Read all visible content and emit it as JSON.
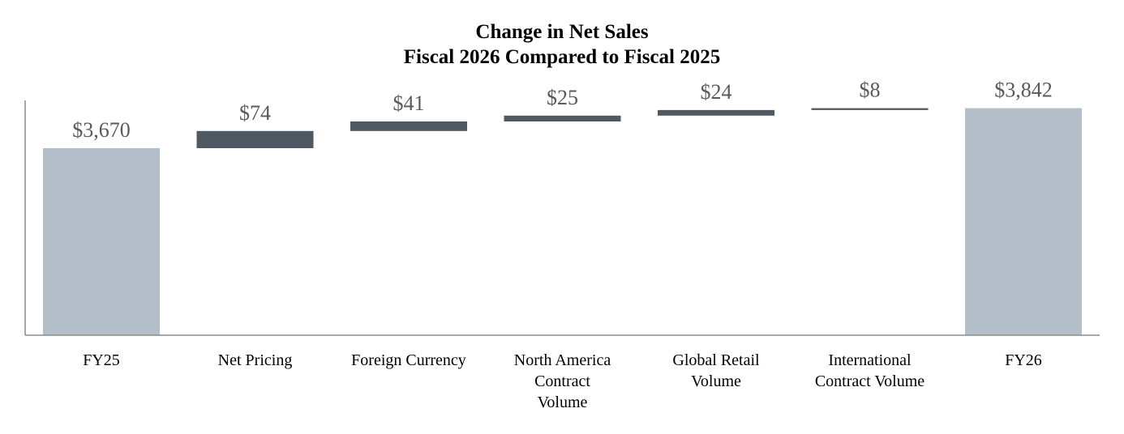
{
  "chart_data": {
    "type": "bar",
    "subtype": "waterfall",
    "title": "Change in Net Sales",
    "subtitle": "Fiscal 2026 Compared to Fiscal 2025",
    "categories": [
      "FY25",
      "Net Pricing",
      "Foreign Currency",
      "North America Contract Volume",
      "Global Retail Volume",
      "International Contract Volume",
      "FY26"
    ],
    "category_label_lines": [
      [
        "FY25"
      ],
      [
        "Net Pricing"
      ],
      [
        "Foreign Currency"
      ],
      [
        "North America",
        "Contract",
        "Volume"
      ],
      [
        "Global Retail",
        "Volume"
      ],
      [
        "International",
        "Contract Volume"
      ],
      [
        "FY26"
      ]
    ],
    "values": [
      3670,
      74,
      41,
      25,
      24,
      8,
      3842
    ],
    "bar_kinds": [
      "total",
      "delta",
      "delta",
      "delta",
      "delta",
      "delta",
      "total"
    ],
    "data_labels": [
      "$3,670",
      "$74",
      "$41",
      "$25",
      "$24",
      "$8",
      "$3,842"
    ],
    "ylim": [
      2865,
      3900
    ],
    "xlabel": "",
    "ylabel": "",
    "grid": false,
    "legend": "none",
    "colors": {
      "total": "#b4bec8",
      "delta": "#4f5963",
      "axis": "#8c8c8c",
      "value_label": "#5a5a5a"
    }
  }
}
